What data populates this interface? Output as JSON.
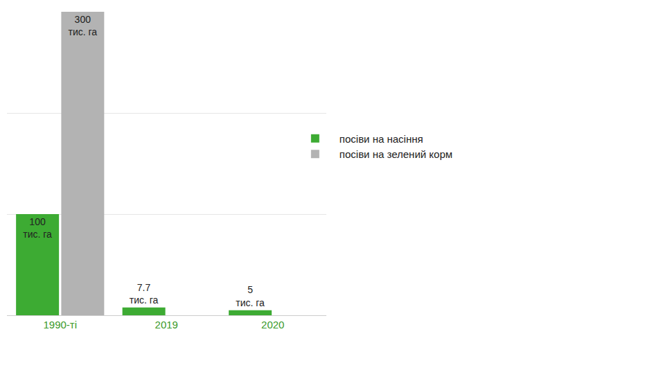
{
  "chart_data": {
    "type": "bar",
    "categories": [
      "1990-ті",
      "2019",
      "2020"
    ],
    "series": [
      {
        "name": "посіви на насіння",
        "color": "#3dab33",
        "values": [
          100,
          7.7,
          5
        ],
        "value_labels": [
          "100 тис. га",
          "7.7 тис. га",
          "5 тис. га"
        ]
      },
      {
        "name": "посіви на зелений корм",
        "color": "#b3b3b3",
        "values": [
          300,
          null,
          null
        ],
        "value_labels": [
          "300 тис. га",
          null,
          null
        ]
      }
    ],
    "ylim": [
      0,
      300
    ],
    "yticks": [
      0,
      100,
      200,
      300
    ],
    "grid": true,
    "legend": "right",
    "data_labels": true,
    "tick_labels": "x"
  }
}
